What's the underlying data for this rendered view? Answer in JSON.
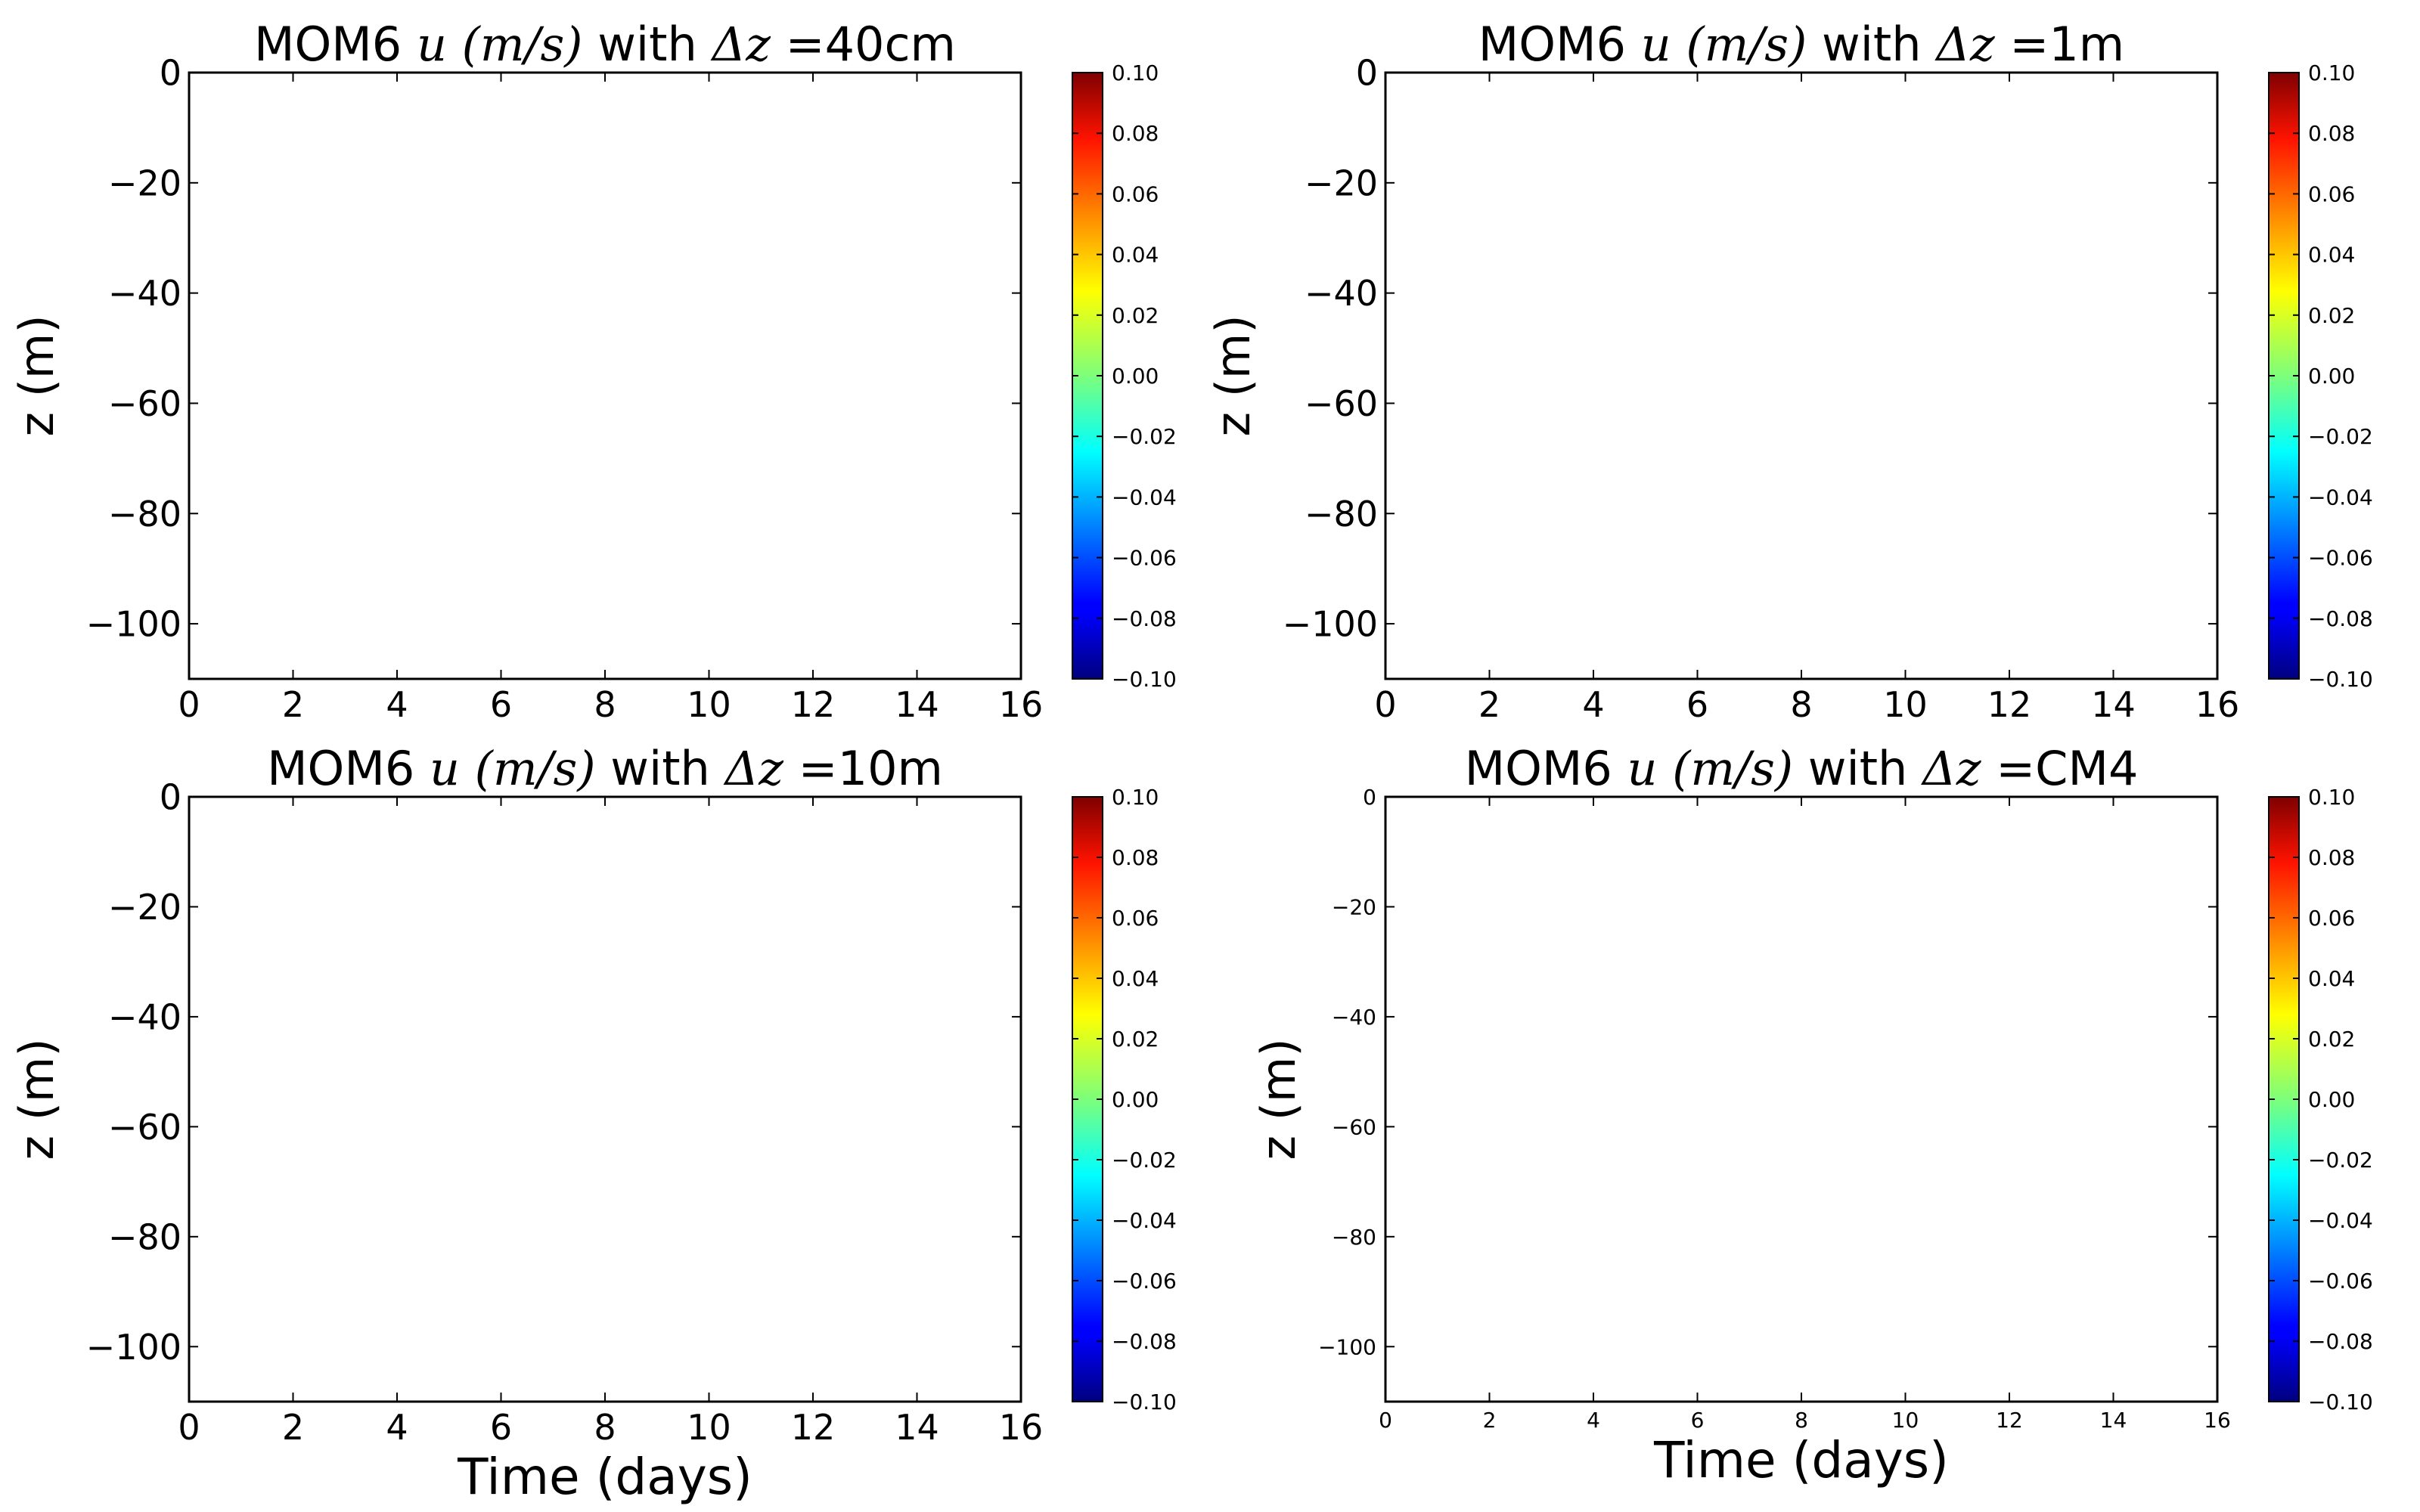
{
  "colormap": "jet",
  "charts_style": {
    "axes_color": "#000000",
    "background": "#ffffff"
  },
  "chart_data": [
    {
      "type": "heatmap",
      "title": {
        "prefix": "MOM6 ",
        "var": "u",
        "units": "(m/s)",
        "mid": " with ",
        "delta": "Δz",
        "suffix": " =40cm"
      },
      "xlabel": "",
      "ylabel": "z (m)",
      "xlim": [
        0,
        16
      ],
      "ylim": [
        -110,
        0
      ],
      "xticks": [
        0,
        2,
        4,
        6,
        8,
        10,
        12,
        14,
        16
      ],
      "yticks": [
        0,
        -20,
        -40,
        -60,
        -80,
        -100
      ],
      "tick_label_size": "large",
      "values": [],
      "colorbar": {
        "min": -0.1,
        "max": 0.1,
        "ticks": [
          "0.10",
          "0.08",
          "0.06",
          "0.04",
          "0.02",
          "0.00",
          "−0.02",
          "−0.04",
          "−0.06",
          "−0.08",
          "−0.10"
        ]
      }
    },
    {
      "type": "heatmap",
      "title": {
        "prefix": "MOM6 ",
        "var": "u",
        "units": "(m/s)",
        "mid": " with ",
        "delta": "Δz",
        "suffix": " =1m"
      },
      "xlabel": "",
      "ylabel": "z (m)",
      "xlim": [
        0,
        16
      ],
      "ylim": [
        -110,
        0
      ],
      "xticks": [
        0,
        2,
        4,
        6,
        8,
        10,
        12,
        14,
        16
      ],
      "yticks": [
        0,
        -20,
        -40,
        -60,
        -80,
        -100
      ],
      "tick_label_size": "large",
      "values": [],
      "colorbar": {
        "min": -0.1,
        "max": 0.1,
        "ticks": [
          "0.10",
          "0.08",
          "0.06",
          "0.04",
          "0.02",
          "0.00",
          "−0.02",
          "−0.04",
          "−0.06",
          "−0.08",
          "−0.10"
        ]
      }
    },
    {
      "type": "heatmap",
      "title": {
        "prefix": "MOM6 ",
        "var": "u",
        "units": "(m/s)",
        "mid": " with ",
        "delta": "Δz",
        "suffix": " =10m"
      },
      "xlabel": "Time (days)",
      "ylabel": "z (m)",
      "xlim": [
        0,
        16
      ],
      "ylim": [
        -110,
        0
      ],
      "xticks": [
        0,
        2,
        4,
        6,
        8,
        10,
        12,
        14,
        16
      ],
      "yticks": [
        0,
        -20,
        -40,
        -60,
        -80,
        -100
      ],
      "tick_label_size": "large",
      "values": [],
      "colorbar": {
        "min": -0.1,
        "max": 0.1,
        "ticks": [
          "0.10",
          "0.08",
          "0.06",
          "0.04",
          "0.02",
          "0.00",
          "−0.02",
          "−0.04",
          "−0.06",
          "−0.08",
          "−0.10"
        ]
      }
    },
    {
      "type": "heatmap",
      "title": {
        "prefix": "MOM6 ",
        "var": "u",
        "units": "(m/s)",
        "mid": " with ",
        "delta": "Δz",
        "suffix": " =CM4"
      },
      "xlabel": "Time (days)",
      "ylabel": "z (m)",
      "xlim": [
        0,
        16
      ],
      "ylim": [
        -110,
        0
      ],
      "xticks": [
        0,
        2,
        4,
        6,
        8,
        10,
        12,
        14,
        16
      ],
      "yticks": [
        0,
        -20,
        -40,
        -60,
        -80,
        -100
      ],
      "tick_label_size": "small",
      "values": [],
      "colorbar": {
        "min": -0.1,
        "max": 0.1,
        "ticks": [
          "0.10",
          "0.08",
          "0.06",
          "0.04",
          "0.02",
          "0.00",
          "−0.02",
          "−0.04",
          "−0.06",
          "−0.08",
          "−0.10"
        ]
      }
    }
  ]
}
